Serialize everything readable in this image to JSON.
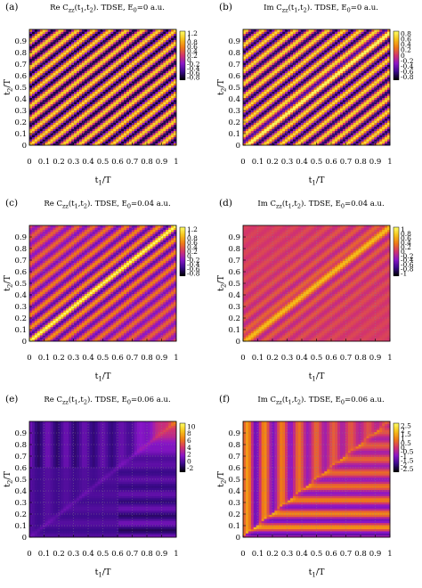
{
  "figure": {
    "colormap": [
      "#000000",
      "#3a0a8a",
      "#8a16c8",
      "#d2336e",
      "#ef7a16",
      "#f6c21a",
      "#ffff66"
    ],
    "grid_color": "#888888"
  },
  "chart_data": [
    {
      "type": "heatmap",
      "panel_label": "(a)",
      "title_parts": [
        "Re C",
        "zz",
        "(t",
        "1",
        ",t",
        "2",
        "). TDSE, E",
        "0",
        "=0 a.u."
      ],
      "xlabel_parts": [
        "t",
        "1",
        "/T"
      ],
      "ylabel_parts": [
        "t",
        "2",
        "/T"
      ],
      "x_ticks": [
        "0",
        "0.1",
        "0.2",
        "0.3",
        "0.4",
        "0.5",
        "0.6",
        "0.7",
        "0.8",
        "0.9",
        "1"
      ],
      "y_ticks": [
        "0",
        "0.1",
        "0.2",
        "0.3",
        "0.4",
        "0.5",
        "0.6",
        "0.7",
        "0.8",
        "0.9"
      ],
      "xlim": [
        0,
        1
      ],
      "ylim": [
        0,
        1
      ],
      "colorbar_range": [
        -0.9,
        1.3
      ],
      "colorbar_ticks": [
        "1.2",
        "1",
        "0.8",
        "0.6",
        "0.4",
        "0.2",
        "0",
        "-0.2",
        "-0.4",
        "-0.6",
        "-0.8"
      ],
      "colorbar_tick_values": [
        1.2,
        1,
        0.8,
        0.6,
        0.4,
        0.2,
        0,
        -0.2,
        -0.4,
        -0.6,
        -0.8
      ],
      "pattern": "diagonal stripes parallel to t1=t2, about 9 periods per unit, amplitude about 1"
    },
    {
      "type": "heatmap",
      "panel_label": "(b)",
      "title_parts": [
        "Im C",
        "zz",
        "(t",
        "1",
        ",t",
        "2",
        "). TDSE, E",
        "0",
        "=0 a.u."
      ],
      "xlabel_parts": [
        "t",
        "1",
        "/T"
      ],
      "ylabel_parts": [
        "t",
        "2",
        "/T"
      ],
      "x_ticks": [
        "0",
        "0.1",
        "0.2",
        "0.3",
        "0.4",
        "0.5",
        "0.6",
        "0.7",
        "0.8",
        "0.9",
        "1"
      ],
      "y_ticks": [
        "0",
        "0.1",
        "0.2",
        "0.3",
        "0.4",
        "0.5",
        "0.6",
        "0.7",
        "0.8",
        "0.9"
      ],
      "xlim": [
        0,
        1
      ],
      "ylim": [
        0,
        1
      ],
      "colorbar_range": [
        -0.9,
        0.9
      ],
      "colorbar_ticks": [
        "0.8",
        "0.6",
        "0.4",
        "0.2",
        "0",
        "-0.2",
        "-0.4",
        "-0.6",
        "-0.8"
      ],
      "colorbar_tick_values": [
        0.8,
        0.6,
        0.4,
        0.2,
        0,
        -0.2,
        -0.4,
        -0.6,
        -0.8
      ],
      "pattern": "diagonal stripes antisymmetric about t1=t2, bright band along diagonal"
    },
    {
      "type": "heatmap",
      "panel_label": "(c)",
      "title_parts": [
        "Re C",
        "zz",
        "(t",
        "1",
        ",t",
        "2",
        "). TDSE, E",
        "0",
        "=0.04 a.u."
      ],
      "xlabel_parts": [
        "t",
        "1",
        "/T"
      ],
      "ylabel_parts": [
        "t",
        "2",
        "/T"
      ],
      "x_ticks": [
        "0",
        "0.1",
        "0.2",
        "0.3",
        "0.4",
        "0.5",
        "0.6",
        "0.7",
        "0.8",
        "0.9",
        "1"
      ],
      "y_ticks": [
        "0",
        "0.1",
        "0.2",
        "0.3",
        "0.4",
        "0.5",
        "0.6",
        "0.7",
        "0.8",
        "0.9"
      ],
      "xlim": [
        0,
        1
      ],
      "ylim": [
        0,
        1
      ],
      "colorbar_range": [
        -0.9,
        1.3
      ],
      "colorbar_ticks": [
        "1.2",
        "1",
        "0.8",
        "0.6",
        "0.4",
        "0.2",
        "0",
        "-0.2",
        "-0.4",
        "-0.6",
        "-0.8"
      ],
      "colorbar_tick_values": [
        1.2,
        1,
        0.8,
        0.6,
        0.4,
        0.2,
        0,
        -0.2,
        -0.4,
        -0.6,
        -0.8
      ],
      "pattern": "diagonal stripes decaying away from t1=t2, bright diagonal line"
    },
    {
      "type": "heatmap",
      "panel_label": "(d)",
      "title_parts": [
        "Im C",
        "zz",
        "(t",
        "1",
        ",t",
        "2",
        "). TDSE, E",
        "0",
        "=0.04 a.u."
      ],
      "xlabel_parts": [
        "t",
        "1",
        "/T"
      ],
      "ylabel_parts": [
        "t",
        "2",
        "/T"
      ],
      "x_ticks": [
        "0",
        "0.1",
        "0.2",
        "0.3",
        "0.4",
        "0.5",
        "0.6",
        "0.7",
        "0.8",
        "0.9",
        "1"
      ],
      "y_ticks": [
        "0",
        "0.1",
        "0.2",
        "0.3",
        "0.4",
        "0.5",
        "0.6",
        "0.7",
        "0.8",
        "0.9"
      ],
      "xlim": [
        0,
        1
      ],
      "ylim": [
        0,
        1
      ],
      "colorbar_range": [
        -1.1,
        1.1
      ],
      "colorbar_ticks": [
        "1",
        "0.8",
        "0.6",
        "0.4",
        "0.2",
        "0",
        "-0.2",
        "-0.4",
        "-0.6",
        "-0.8",
        "-1"
      ],
      "colorbar_tick_values": [
        1,
        0.8,
        0.6,
        0.4,
        0.2,
        0,
        -0.2,
        -0.4,
        -0.6,
        -0.8,
        -1
      ],
      "pattern": "weak diagonal stripes with bright band along t1=t2"
    },
    {
      "type": "heatmap",
      "panel_label": "(e)",
      "title_parts": [
        "Re C",
        "zz",
        "(t",
        "1",
        ",t",
        "2",
        "). TDSE, E",
        "0",
        "=0.06 a.u."
      ],
      "xlabel_parts": [
        "t",
        "1",
        "/T"
      ],
      "ylabel_parts": [
        "t",
        "2",
        "/T"
      ],
      "x_ticks": [
        "0",
        "0.1",
        "0.2",
        "0.3",
        "0.4",
        "0.5",
        "0.6",
        "0.7",
        "0.8",
        "0.9",
        "1"
      ],
      "y_ticks": [
        "0",
        "0.1",
        "0.2",
        "0.3",
        "0.4",
        "0.5",
        "0.6",
        "0.7",
        "0.8",
        "0.9"
      ],
      "xlim": [
        0,
        1
      ],
      "ylim": [
        0,
        1
      ],
      "colorbar_range": [
        -3,
        11
      ],
      "colorbar_ticks": [
        "10",
        "8",
        "6",
        "4",
        "2",
        "0",
        "-2"
      ],
      "colorbar_tick_values": [
        10,
        8,
        6,
        4,
        2,
        0,
        -2
      ],
      "pattern": "strong positive region near t1,t2 > 0.6, mostly low elsewhere with horizontal and vertical bands"
    },
    {
      "type": "heatmap",
      "panel_label": "(f)",
      "title_parts": [
        "Im C",
        "zz",
        "(t",
        "1",
        ",t",
        "2",
        "). TDSE, E",
        "0",
        "=0.06 a.u."
      ],
      "xlabel_parts": [
        "t",
        "1",
        "/T"
      ],
      "ylabel_parts": [
        "t",
        "2",
        "/T"
      ],
      "x_ticks": [
        "0",
        "0.1",
        "0.2",
        "0.3",
        "0.4",
        "0.5",
        "0.6",
        "0.7",
        "0.8",
        "0.9",
        "1"
      ],
      "y_ticks": [
        "0",
        "0.1",
        "0.2",
        "0.3",
        "0.4",
        "0.5",
        "0.6",
        "0.7",
        "0.8",
        "0.9"
      ],
      "xlim": [
        0,
        1
      ],
      "ylim": [
        0,
        1
      ],
      "colorbar_range": [
        -2.8,
        2.8
      ],
      "colorbar_ticks": [
        "2.5",
        "2",
        "1.5",
        "1",
        "0.5",
        "0",
        "-0.5",
        "-1",
        "-1.5",
        "-2",
        "-2.5"
      ],
      "colorbar_tick_values": [
        2.5,
        2,
        1.5,
        1,
        0.5,
        0,
        -0.5,
        -1,
        -1.5,
        -2,
        -2.5
      ],
      "pattern": "vertical bands above the diagonal, horizontal bands below the diagonal"
    }
  ]
}
